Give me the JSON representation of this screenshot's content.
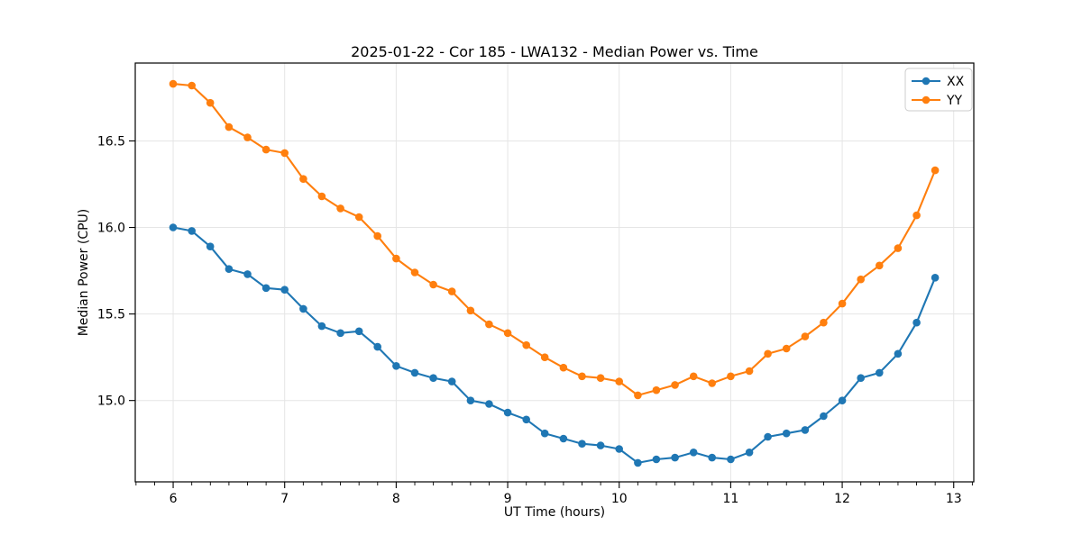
{
  "chart_data": {
    "type": "line",
    "title": "2025-01-22 - Cor 185 - LWA132 - Median Power vs. Time",
    "xlabel": "UT Time (hours)",
    "ylabel": "Median Power (CPU)",
    "xlim": [
      5.66,
      13.18
    ],
    "ylim": [
      14.53,
      16.95
    ],
    "x_ticks": [
      6,
      7,
      8,
      9,
      10,
      11,
      12,
      13
    ],
    "x_tick_labels": [
      "6",
      "7",
      "8",
      "9",
      "10",
      "11",
      "12",
      "13"
    ],
    "y_ticks": [
      15.0,
      15.5,
      16.0,
      16.5
    ],
    "y_tick_labels": [
      "15.0",
      "15.5",
      "16.0",
      "16.5"
    ],
    "minor_x_tick_step": 0.16667,
    "grid": true,
    "grid_color": "#e5e5e5",
    "legend": {
      "position": "upper right",
      "entries": [
        "XX",
        "YY"
      ]
    },
    "x": [
      6.0,
      6.167,
      6.333,
      6.5,
      6.667,
      6.833,
      7.0,
      7.167,
      7.333,
      7.5,
      7.667,
      7.833,
      8.0,
      8.167,
      8.333,
      8.5,
      8.667,
      8.833,
      9.0,
      9.167,
      9.333,
      9.5,
      9.667,
      9.833,
      10.0,
      10.167,
      10.333,
      10.5,
      10.667,
      10.833,
      11.0,
      11.167,
      11.333,
      11.5,
      11.667,
      11.833,
      12.0,
      12.167,
      12.333,
      12.5,
      12.667,
      12.833
    ],
    "series": [
      {
        "name": "XX",
        "color": "#1f77b4",
        "values": [
          16.0,
          15.98,
          15.89,
          15.76,
          15.73,
          15.65,
          15.64,
          15.53,
          15.43,
          15.39,
          15.4,
          15.31,
          15.2,
          15.16,
          15.13,
          15.11,
          15.0,
          14.98,
          14.93,
          14.89,
          14.81,
          14.78,
          14.75,
          14.74,
          14.72,
          14.64,
          14.66,
          14.67,
          14.7,
          14.67,
          14.66,
          14.7,
          14.79,
          14.81,
          14.83,
          14.91,
          15.0,
          15.13,
          15.16,
          15.27,
          15.45,
          15.71
        ]
      },
      {
        "name": "YY",
        "color": "#ff7f0e",
        "values": [
          16.83,
          16.82,
          16.72,
          16.58,
          16.52,
          16.45,
          16.43,
          16.28,
          16.18,
          16.11,
          16.06,
          15.95,
          15.82,
          15.74,
          15.67,
          15.63,
          15.52,
          15.44,
          15.39,
          15.32,
          15.25,
          15.19,
          15.14,
          15.13,
          15.11,
          15.03,
          15.06,
          15.09,
          15.14,
          15.1,
          15.14,
          15.17,
          15.27,
          15.3,
          15.37,
          15.45,
          15.56,
          15.7,
          15.78,
          15.88,
          16.07,
          16.33
        ]
      }
    ]
  }
}
